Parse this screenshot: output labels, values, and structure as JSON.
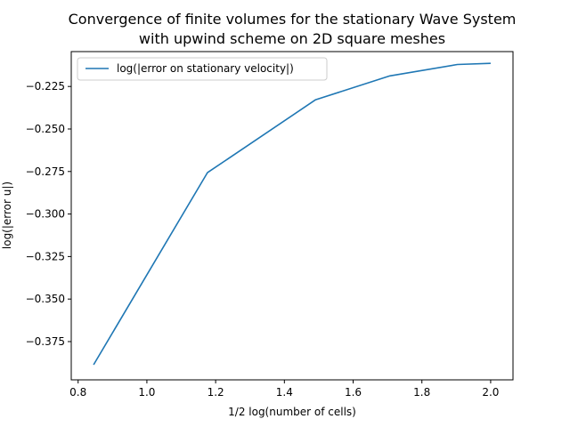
{
  "chart_data": {
    "type": "line",
    "title_lines": [
      "Convergence of finite volumes for the stationary Wave System",
      "with upwind scheme  on 2D square meshes"
    ],
    "xlabel": "1/2 log(number of cells)",
    "ylabel": "log(|error u|)",
    "xlim": [
      0.78,
      2.065
    ],
    "ylim": [
      -0.3975,
      -0.2045
    ],
    "xticks": [
      0.8,
      1.0,
      1.2,
      1.4,
      1.6,
      1.8,
      2.0
    ],
    "xtick_labels": [
      "0.8",
      "1.0",
      "1.2",
      "1.4",
      "1.6",
      "1.8",
      "2.0"
    ],
    "yticks": [
      -0.225,
      -0.25,
      -0.275,
      -0.3,
      -0.325,
      -0.35,
      -0.375
    ],
    "ytick_labels": [
      "−0.225",
      "−0.250",
      "−0.275",
      "−0.300",
      "−0.325",
      "−0.350",
      "−0.375"
    ],
    "grid": false,
    "legend_position": "top-left",
    "series": [
      {
        "name": "log(|error on stationary velocity|)",
        "color": "#1f77b4",
        "x": [
          0.845,
          1.176,
          1.491,
          1.707,
          1.903,
          2.0
        ],
        "y": [
          -0.3886,
          -0.2757,
          -0.2328,
          -0.2188,
          -0.2121,
          -0.2114
        ]
      }
    ]
  }
}
